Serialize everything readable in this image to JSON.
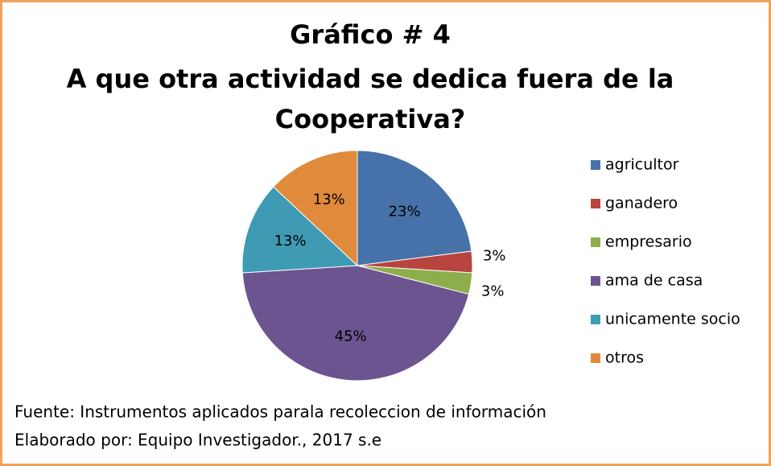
{
  "chart_data": {
    "type": "pie",
    "title": [
      "Gráfico # 4",
      "A que otra actividad se dedica fuera de la",
      "Cooperativa?"
    ],
    "categories": [
      "agricultor",
      "ganadero",
      "empresario",
      "ama de casa",
      "unicamente socio",
      "otros"
    ],
    "values": [
      23,
      3,
      3,
      45,
      13,
      13
    ],
    "value_labels": [
      "23%",
      "3%",
      "3%",
      "45%",
      "13%",
      "13%"
    ],
    "colors": [
      "#4672a9",
      "#b8443f",
      "#8ead4b",
      "#6c5490",
      "#3e9bb3",
      "#e08a3c"
    ],
    "legend": "right",
    "source": [
      "Fuente: Instrumentos aplicados parala recoleccion de  información",
      "Elaborado por: Equipo Investigador., 2017 s.e"
    ]
  }
}
